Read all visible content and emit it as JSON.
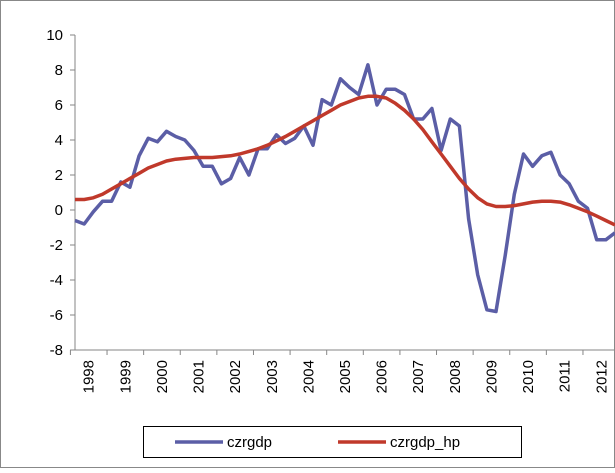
{
  "chart_data": {
    "type": "line",
    "categories": [
      "1998",
      null,
      null,
      null,
      "1999",
      null,
      null,
      null,
      "2000",
      null,
      null,
      null,
      "2001",
      null,
      null,
      null,
      "2002",
      null,
      null,
      null,
      "2003",
      null,
      null,
      null,
      "2004",
      null,
      null,
      null,
      "2005",
      null,
      null,
      null,
      "2006",
      null,
      null,
      null,
      "2007",
      null,
      null,
      null,
      "2008",
      null,
      null,
      null,
      "2009",
      null,
      null,
      null,
      "2010",
      null,
      null,
      null,
      "2011",
      null,
      null,
      null,
      "2012",
      null,
      null,
      null
    ],
    "series": [
      {
        "name": "czrgdp",
        "color": "#5b5ea6",
        "values": [
          -0.6,
          -0.8,
          -0.1,
          0.5,
          0.5,
          1.6,
          1.3,
          3.1,
          4.1,
          3.9,
          4.5,
          4.2,
          4.0,
          3.4,
          2.5,
          2.5,
          1.5,
          1.8,
          3.0,
          2.0,
          3.5,
          3.5,
          4.3,
          3.8,
          4.1,
          4.8,
          3.7,
          6.3,
          6.0,
          7.5,
          7.0,
          6.6,
          8.3,
          6.0,
          6.9,
          6.9,
          6.6,
          5.2,
          5.2,
          5.8,
          3.4,
          5.2,
          4.8,
          -0.5,
          -3.7,
          -5.7,
          -5.8,
          -2.6,
          0.9,
          3.2,
          2.5,
          3.1,
          3.3,
          2.0,
          1.5,
          0.5,
          0.1,
          -1.7,
          -1.7,
          -1.3
        ]
      },
      {
        "name": "czrgdp_hp",
        "color": "#c0392b",
        "values": [
          0.6,
          0.6,
          0.7,
          0.9,
          1.2,
          1.5,
          1.8,
          2.1,
          2.4,
          2.6,
          2.8,
          2.9,
          2.95,
          3.0,
          3.0,
          3.0,
          3.05,
          3.1,
          3.2,
          3.35,
          3.5,
          3.7,
          3.95,
          4.2,
          4.5,
          4.8,
          5.1,
          5.4,
          5.7,
          6.0,
          6.2,
          6.4,
          6.5,
          6.5,
          6.4,
          6.1,
          5.7,
          5.2,
          4.6,
          3.9,
          3.2,
          2.5,
          1.8,
          1.2,
          0.7,
          0.35,
          0.2,
          0.2,
          0.25,
          0.35,
          0.45,
          0.5,
          0.5,
          0.45,
          0.3,
          0.1,
          -0.1,
          -0.35,
          -0.6,
          -0.85
        ]
      }
    ],
    "ylim": [
      -8,
      10
    ],
    "yticks": [
      -8,
      -6,
      -4,
      -2,
      0,
      2,
      4,
      6,
      8,
      10
    ],
    "grid": false,
    "legend": "bottom"
  }
}
